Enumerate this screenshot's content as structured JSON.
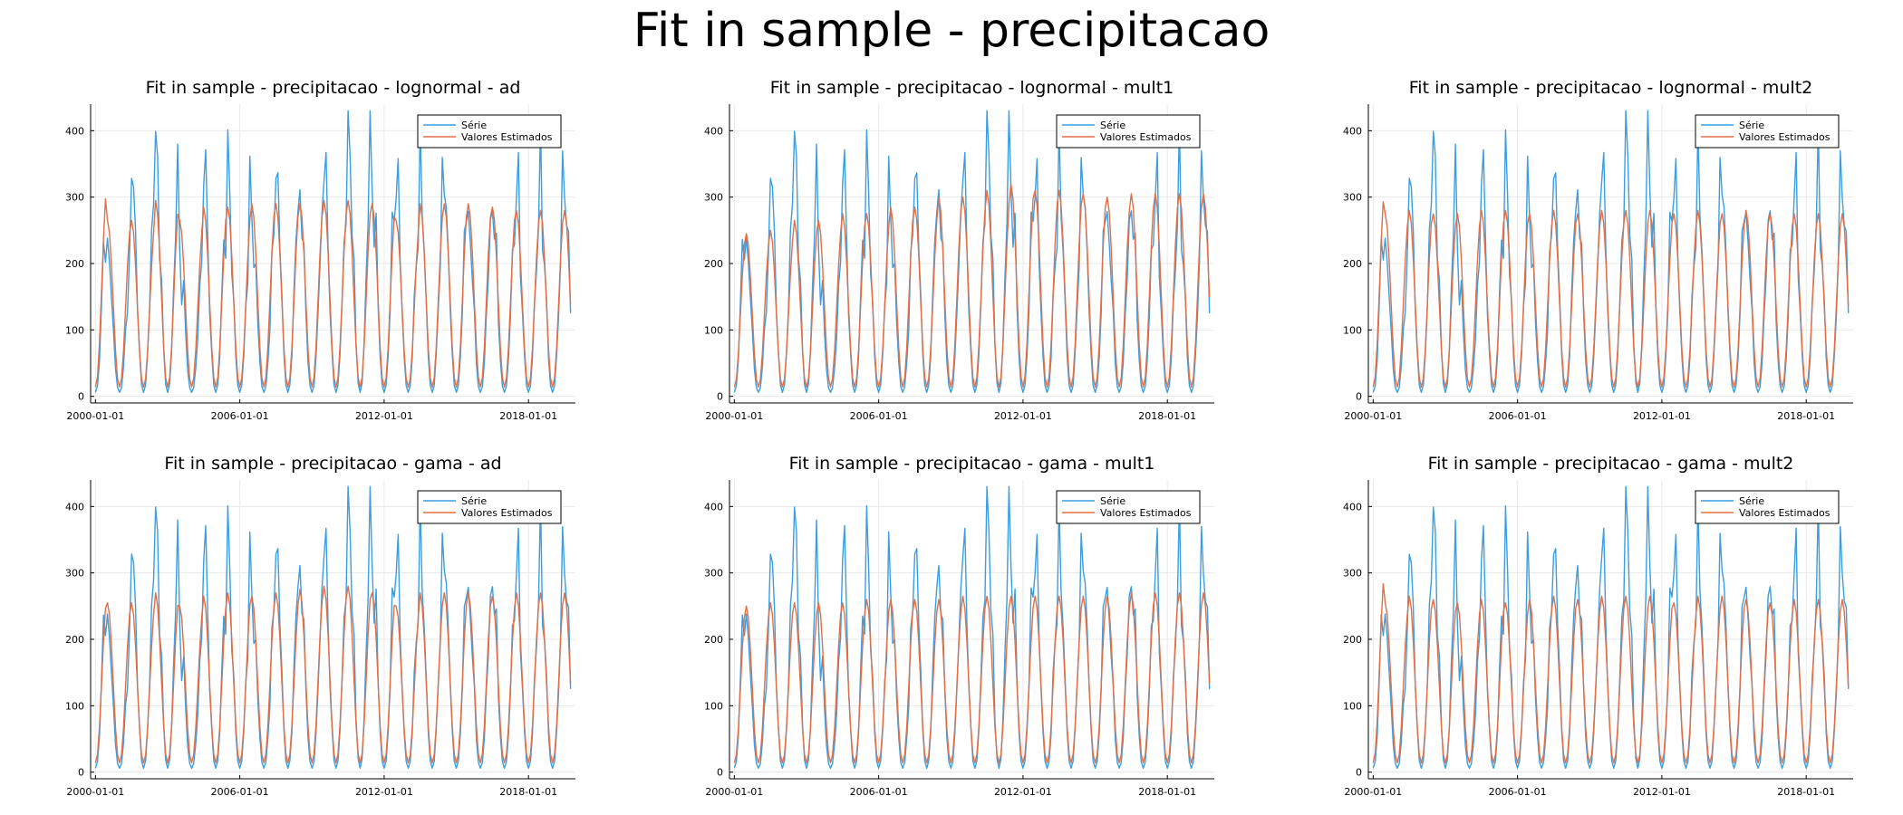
{
  "title": "Fit in sample - precipitacao",
  "colors": {
    "serie": "#3a9ee0",
    "estimado": "#e26f46"
  },
  "legend": {
    "serie": "Série",
    "estimado": "Valores Estimados",
    "position": "top-right"
  },
  "chart_data": [
    {
      "type": "line",
      "title": "Fit in sample - precipitacao - lognormal - ad",
      "dist": "lognormal",
      "variant": "ad",
      "x_start": "2000-01-01",
      "x_frequency": "monthly",
      "xticks": [
        "2000-01-01",
        "2006-01-01",
        "2012-01-01",
        "2018-01-01"
      ],
      "yticks": [
        0,
        100,
        200,
        300,
        400
      ],
      "ylim": [
        -10,
        440
      ],
      "grid": true,
      "series": [
        {
          "name": "Série",
          "peaks": [
            295,
            215,
            335,
            370,
            210,
            325,
            315,
            260,
            335,
            290,
            330,
            425,
            320,
            305,
            320,
            310,
            265,
            285,
            305
          ]
        },
        {
          "name": "Valores Estimados",
          "peaks": [
            320,
            265,
            265,
            295,
            265,
            285,
            285,
            290,
            290,
            290,
            295,
            295,
            290,
            265,
            290,
            290,
            290,
            285,
            280
          ]
        }
      ]
    },
    {
      "type": "line",
      "title": "Fit in sample - precipitacao - lognormal - mult1",
      "dist": "lognormal",
      "variant": "mult1",
      "x_start": "2000-01-01",
      "x_frequency": "monthly",
      "xticks": [
        "2000-01-01",
        "2006-01-01",
        "2012-01-01",
        "2018-01-01"
      ],
      "yticks": [
        0,
        100,
        200,
        300,
        400
      ],
      "ylim": [
        -10,
        440
      ],
      "grid": true,
      "series": [
        {
          "name": "Série",
          "peaks": [
            300,
            215,
            335,
            370,
            210,
            325,
            315,
            260,
            335,
            290,
            330,
            425,
            320,
            305,
            320,
            310,
            265,
            285,
            305
          ]
        },
        {
          "name": "Valores Estimados",
          "peaks": [
            245,
            245,
            250,
            265,
            265,
            275,
            275,
            285,
            285,
            300,
            300,
            310,
            320,
            310,
            310,
            305,
            300,
            305,
            305
          ]
        }
      ]
    },
    {
      "type": "line",
      "title": "Fit in sample - precipitacao - lognormal - mult2",
      "dist": "lognormal",
      "variant": "mult2",
      "x_start": "2000-01-01",
      "x_frequency": "monthly",
      "xticks": [
        "2000-01-01",
        "2006-01-01",
        "2012-01-01",
        "2018-01-01"
      ],
      "yticks": [
        0,
        100,
        200,
        300,
        400
      ],
      "ylim": [
        -10,
        440
      ],
      "grid": true,
      "series": [
        {
          "name": "Série",
          "peaks": [
            300,
            215,
            335,
            370,
            210,
            325,
            315,
            260,
            335,
            290,
            330,
            425,
            320,
            305,
            320,
            310,
            265,
            285,
            305
          ]
        },
        {
          "name": "Valores Estimados",
          "peaks": [
            315,
            275,
            280,
            275,
            275,
            280,
            280,
            275,
            280,
            275,
            280,
            280,
            280,
            275,
            280,
            275,
            280,
            275,
            275
          ]
        }
      ]
    },
    {
      "type": "line",
      "title": "Fit in sample - precipitacao - gama - ad",
      "dist": "gama",
      "variant": "ad",
      "x_start": "2000-01-01",
      "x_frequency": "monthly",
      "xticks": [
        "2000-01-01",
        "2006-01-01",
        "2012-01-01",
        "2018-01-01"
      ],
      "yticks": [
        0,
        100,
        200,
        300,
        400
      ],
      "ylim": [
        -10,
        440
      ],
      "grid": true,
      "series": [
        {
          "name": "Série",
          "peaks": [
            300,
            215,
            335,
            370,
            210,
            325,
            315,
            260,
            335,
            290,
            330,
            425,
            320,
            305,
            320,
            310,
            265,
            285,
            305
          ]
        },
        {
          "name": "Valores Estimados",
          "peaks": [
            265,
            255,
            255,
            270,
            250,
            265,
            270,
            265,
            270,
            275,
            280,
            280,
            270,
            250,
            270,
            270,
            270,
            265,
            270
          ]
        }
      ]
    },
    {
      "type": "line",
      "title": "Fit in sample - precipitacao - gama - mult1",
      "dist": "gama",
      "variant": "mult1",
      "x_start": "2000-01-01",
      "x_frequency": "monthly",
      "xticks": [
        "2000-01-01",
        "2006-01-01",
        "2012-01-01",
        "2018-01-01"
      ],
      "yticks": [
        0,
        100,
        200,
        300,
        400
      ],
      "ylim": [
        -10,
        440
      ],
      "grid": true,
      "series": [
        {
          "name": "Série",
          "peaks": [
            300,
            215,
            335,
            370,
            210,
            325,
            315,
            260,
            335,
            290,
            330,
            425,
            320,
            305,
            320,
            310,
            265,
            285,
            305
          ]
        },
        {
          "name": "Valores Estimados",
          "peaks": [
            250,
            250,
            255,
            255,
            255,
            255,
            260,
            260,
            260,
            260,
            265,
            265,
            265,
            265,
            265,
            265,
            265,
            270,
            270
          ]
        }
      ]
    },
    {
      "type": "line",
      "title": "Fit in sample - precipitacao - gama - mult2",
      "dist": "gama",
      "variant": "mult2",
      "x_start": "2000-01-01",
      "x_frequency": "monthly",
      "xticks": [
        "2000-01-01",
        "2006-01-01",
        "2012-01-01",
        "2018-01-01"
      ],
      "yticks": [
        0,
        100,
        200,
        300,
        400
      ],
      "ylim": [
        -10,
        440
      ],
      "grid": true,
      "series": [
        {
          "name": "Série",
          "peaks": [
            300,
            215,
            335,
            370,
            210,
            325,
            315,
            260,
            335,
            290,
            330,
            425,
            320,
            305,
            320,
            310,
            265,
            285,
            305
          ]
        },
        {
          "name": "Valores Estimados",
          "peaks": [
            305,
            255,
            265,
            260,
            255,
            260,
            255,
            260,
            265,
            260,
            265,
            265,
            265,
            255,
            265,
            265,
            260,
            255,
            260
          ]
        }
      ]
    }
  ]
}
